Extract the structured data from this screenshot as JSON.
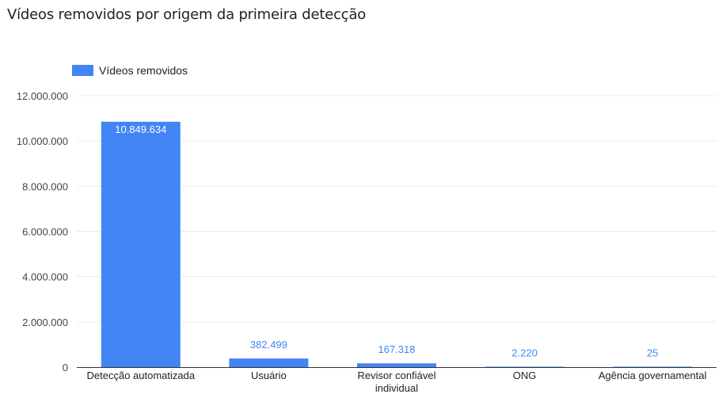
{
  "colors": {
    "bar": "#4285f4",
    "grid": "#ececec",
    "axis": "#333333",
    "inside_label": "#ffffff"
  },
  "legend": {
    "label": "Vídeos removidos"
  },
  "chart_data": {
    "type": "bar",
    "title": "Vídeos removidos por origem da primeira detecção",
    "categories": [
      "Detecção automatizada",
      "Usuário",
      "Revisor confiável\nindividual",
      "ONG",
      "Agência governamental"
    ],
    "series": [
      {
        "name": "Vídeos removidos",
        "values": [
          10849634,
          382499,
          167318,
          2220,
          25
        ]
      }
    ],
    "data_labels": [
      "10.849.634",
      "382.499",
      "167.318",
      "2.220",
      "25"
    ],
    "ylim": [
      0,
      12000000
    ],
    "yticks": [
      0,
      2000000,
      4000000,
      6000000,
      8000000,
      10000000,
      12000000
    ],
    "ytick_labels": [
      "0",
      "2.000.000",
      "4.000.000",
      "6.000.000",
      "8.000.000",
      "10.000.000",
      "12.000.000"
    ],
    "xlabel": "",
    "ylabel": "",
    "grid": true,
    "legend_position": "top-left"
  }
}
